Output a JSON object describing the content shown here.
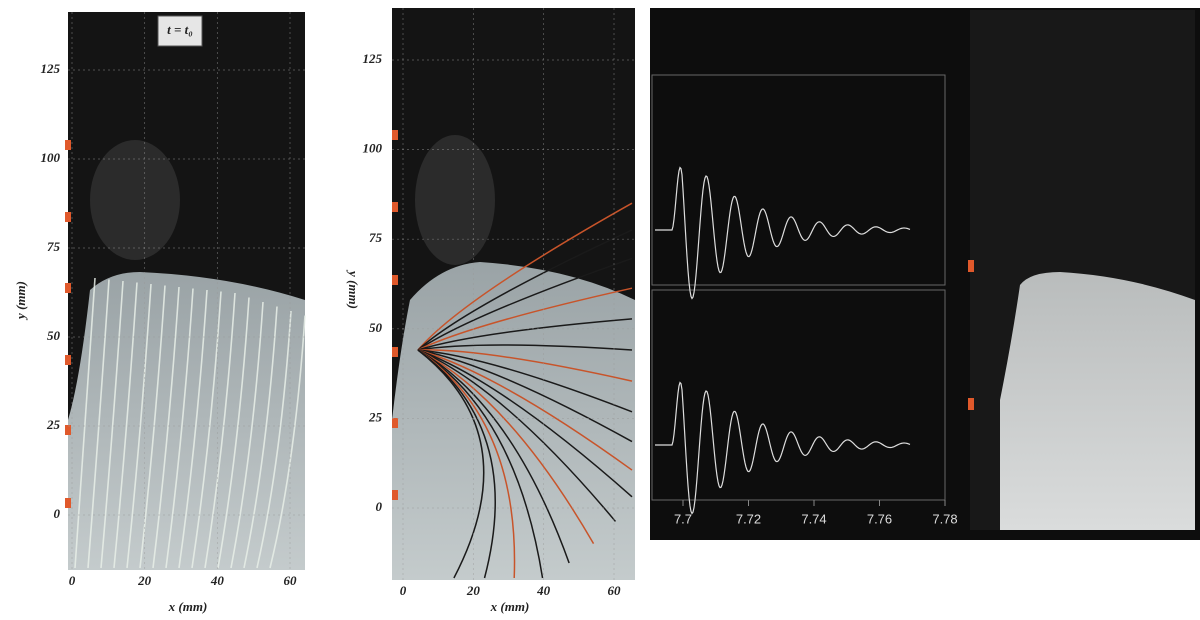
{
  "panels": [
    {
      "title": "t = t₀",
      "y_label": "y (mm)",
      "x_label": "x (mm)",
      "yticks": [
        0,
        25,
        50,
        75,
        100,
        125
      ],
      "xticks": [
        0,
        20,
        40,
        60
      ]
    },
    {
      "y_label": "y (mm)",
      "x_label": "x (mm)",
      "yticks": [
        0,
        25,
        50,
        75,
        100,
        125
      ],
      "xticks": [
        0,
        20,
        40,
        60
      ]
    },
    {
      "xticks": [
        7.7,
        7.72,
        7.74,
        7.76,
        7.78
      ]
    }
  ]
}
